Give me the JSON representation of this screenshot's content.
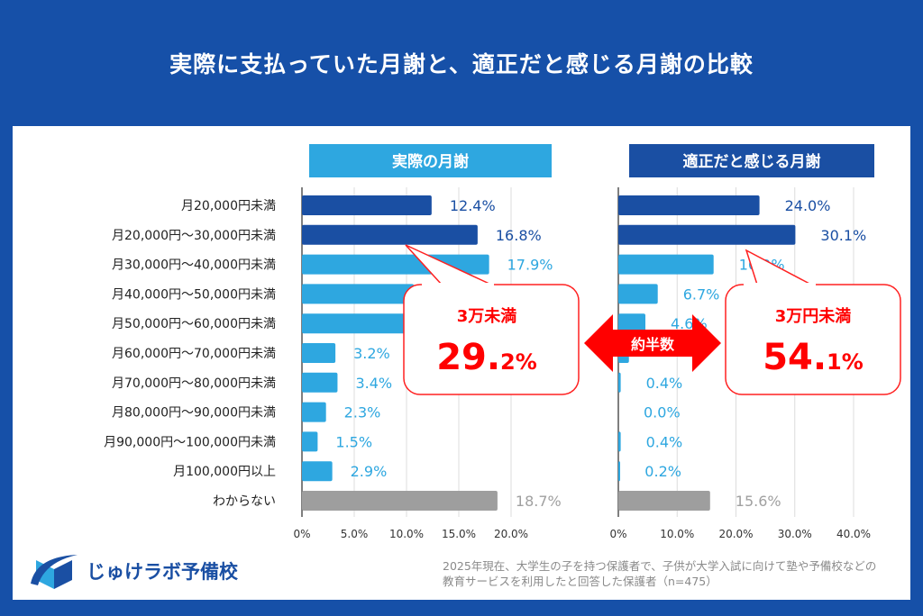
{
  "title": "実際に支払っていた月謝と、適正だと感じる月謝の比較",
  "colors": {
    "background": "#1650a8",
    "dark_bar": "#1a4fa3",
    "light_bar": "#2ea7e0",
    "gray_bar": "#9e9e9e",
    "callout": "#ff0000"
  },
  "chart_data": [
    {
      "type": "bar",
      "orientation": "horizontal",
      "title": "実際の月謝",
      "categories": [
        "月20,000円未満",
        "月20,000円〜30,000円未満",
        "月30,000円〜40,000円未満",
        "月40,000円〜50,000円未満",
        "月50,000円〜60,000円未満",
        "月60,000円〜70,000円未満",
        "月70,000円〜80,000円未満",
        "月80,000円〜90,000円未満",
        "月90,000円〜100,000円未満",
        "月100,000円以上",
        "わからない"
      ],
      "values": [
        12.4,
        16.8,
        17.9,
        10.7,
        10.2,
        3.2,
        3.4,
        2.3,
        1.5,
        2.9,
        18.7
      ],
      "labels": [
        "12.4%",
        "16.8%",
        "17.9%",
        "",
        "",
        "3.2%",
        "3.4%",
        "2.3%",
        "1.5%",
        "2.9%",
        "18.7%"
      ],
      "xlim": [
        0,
        20
      ],
      "ticks": [
        "0%",
        "5.0%",
        "10.0%",
        "15.0%",
        "20.0%"
      ],
      "tick_values": [
        0,
        5,
        10,
        15,
        20
      ],
      "grid": true
    },
    {
      "type": "bar",
      "orientation": "horizontal",
      "title": "適正だと感じる月謝",
      "categories": [
        "月20,000円未満",
        "月20,000円〜30,000円未満",
        "月30,000円〜40,000円未満",
        "月40,000円〜50,000円未満",
        "月50,000円〜60,000円未満",
        "月60,000円〜70,000円未満",
        "月70,000円〜80,000円未満",
        "月80,000円〜90,000円未満",
        "月90,000円〜100,000円未満",
        "月100,000円以上",
        "わからない"
      ],
      "values": [
        24.0,
        30.1,
        16.2,
        6.7,
        4.6,
        1.8,
        0.4,
        0.0,
        0.4,
        0.2,
        15.6
      ],
      "labels": [
        "24.0%",
        "30.1%",
        "16.2%",
        "6.7%",
        "4.6%",
        "",
        "0.4%",
        "0.0%",
        "0.4%",
        "0.2%",
        "15.6%"
      ],
      "xlim": [
        0,
        40
      ],
      "ticks": [
        "0%",
        "10.0%",
        "20.0%",
        "30.0%",
        "40.0%"
      ],
      "tick_values": [
        0,
        10,
        20,
        30,
        40
      ],
      "grid": true
    }
  ],
  "callouts": [
    {
      "label": "3万未満",
      "value": "29.2%"
    },
    {
      "label": "3万円未満",
      "value": "54.1%"
    }
  ],
  "comparison_arrow": "約半数",
  "logo": "じゅけラボ予備校",
  "note": [
    "2025年現在、大学生の子を持つ保護者で、子供が大学入試に向けて塾や予備校などの",
    "教育サービスを利用したと回答した保護者（n=475）"
  ]
}
